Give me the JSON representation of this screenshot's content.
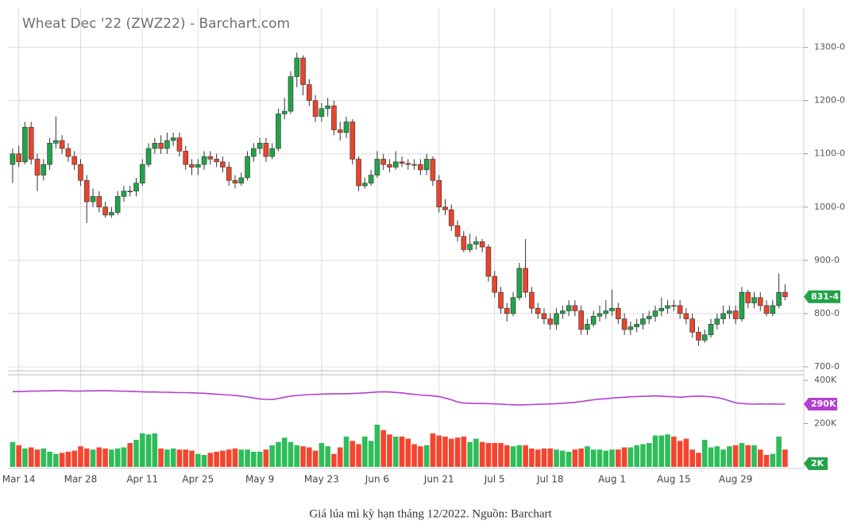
{
  "chart_data": {
    "type": "candlestick",
    "title": "Wheat Dec '22 (ZWZ22) - Barchart.com",
    "caption": "Giá lúa mì kỳ hạn tháng 12/2022. Nguồn: Barchart",
    "grid": true,
    "up_color": "#22a34a",
    "down_color": "#e8452c",
    "categories": [
      null,
      "Mar 14",
      null,
      null,
      null,
      null,
      null,
      null,
      null,
      null,
      null,
      "Mar 28",
      null,
      null,
      null,
      null,
      null,
      null,
      null,
      null,
      null,
      "Apr 11",
      null,
      null,
      null,
      null,
      null,
      null,
      null,
      null,
      "Apr 25",
      null,
      null,
      null,
      null,
      null,
      null,
      null,
      null,
      null,
      "May 9",
      null,
      null,
      null,
      null,
      null,
      null,
      null,
      null,
      null,
      "May 23",
      null,
      null,
      null,
      null,
      null,
      null,
      null,
      null,
      "Jun 6",
      null,
      null,
      null,
      null,
      null,
      null,
      null,
      null,
      null,
      "Jun 21",
      null,
      null,
      null,
      null,
      null,
      null,
      null,
      null,
      "Jul 5",
      null,
      null,
      null,
      null,
      null,
      null,
      null,
      null,
      "Jul 18",
      null,
      null,
      null,
      null,
      null,
      null,
      null,
      null,
      null,
      "Aug 1",
      null,
      null,
      null,
      null,
      null,
      null,
      null,
      null,
      null,
      "Aug 15",
      null,
      null,
      null,
      null,
      null,
      null,
      null,
      null,
      null,
      "Aug 29",
      null,
      null,
      null,
      null,
      null,
      null,
      null,
      null
    ],
    "open": [
      1080,
      1100,
      1085,
      1150,
      1090,
      1060,
      1080,
      1120,
      1125,
      1110,
      1095,
      1080,
      1050,
      1010,
      1020,
      1000,
      985,
      990,
      1020,
      1030,
      1030,
      1045,
      1080,
      1110,
      1120,
      1110,
      1125,
      1130,
      1105,
      1080,
      1075,
      1080,
      1095,
      1090,
      1085,
      1075,
      1050,
      1045,
      1055,
      1095,
      1110,
      1120,
      1095,
      1110,
      1175,
      1180,
      1245,
      1280,
      1230,
      1200,
      1170,
      1185,
      1190,
      1145,
      1140,
      1160,
      1090,
      1040,
      1045,
      1060,
      1090,
      1080,
      1075,
      1085,
      1082,
      1080,
      1080,
      1070,
      1090,
      1050,
      1000,
      995,
      965,
      945,
      920,
      930,
      935,
      925,
      870,
      840,
      810,
      800,
      830,
      885,
      840,
      810,
      800,
      790,
      780,
      800,
      805,
      815,
      805,
      770,
      780,
      795,
      800,
      805,
      810,
      790,
      770,
      775,
      780,
      790,
      795,
      805,
      810,
      815,
      815,
      800,
      790,
      765,
      750,
      760,
      780,
      790,
      800,
      805,
      790,
      840,
      820,
      830,
      815,
      800,
      815,
      840
    ],
    "high": [
      1110,
      1115,
      1160,
      1160,
      1100,
      1090,
      1130,
      1170,
      1135,
      1120,
      1105,
      1090,
      1060,
      1035,
      1030,
      1010,
      1000,
      1030,
      1040,
      1040,
      1055,
      1090,
      1120,
      1130,
      1135,
      1140,
      1140,
      1140,
      1115,
      1090,
      1090,
      1105,
      1105,
      1100,
      1095,
      1085,
      1060,
      1065,
      1105,
      1120,
      1130,
      1130,
      1120,
      1185,
      1205,
      1255,
      1290,
      1285,
      1240,
      1210,
      1195,
      1205,
      1200,
      1160,
      1170,
      1165,
      1095,
      1055,
      1070,
      1105,
      1100,
      1090,
      1105,
      1095,
      1090,
      1090,
      1090,
      1100,
      1095,
      1060,
      1015,
      1005,
      975,
      955,
      950,
      945,
      940,
      930,
      880,
      850,
      820,
      840,
      895,
      940,
      850,
      820,
      810,
      800,
      810,
      815,
      825,
      825,
      815,
      790,
      805,
      815,
      825,
      845,
      820,
      800,
      785,
      790,
      800,
      805,
      815,
      830,
      825,
      825,
      825,
      810,
      800,
      775,
      770,
      790,
      800,
      815,
      815,
      815,
      850,
      845,
      840,
      840,
      825,
      825,
      875,
      855
    ],
    "low": [
      1045,
      1075,
      1080,
      1080,
      1030,
      1050,
      1070,
      1110,
      1100,
      1085,
      1070,
      1040,
      970,
      1000,
      990,
      980,
      980,
      985,
      1010,
      1020,
      1020,
      1040,
      1075,
      1100,
      1100,
      1100,
      1115,
      1095,
      1070,
      1060,
      1060,
      1070,
      1080,
      1075,
      1065,
      1040,
      1035,
      1040,
      1050,
      1085,
      1100,
      1085,
      1090,
      1105,
      1165,
      1175,
      1225,
      1210,
      1190,
      1160,
      1160,
      1170,
      1135,
      1125,
      1130,
      1080,
      1030,
      1035,
      1040,
      1055,
      1070,
      1065,
      1070,
      1075,
      1070,
      1070,
      1060,
      1060,
      1040,
      990,
      985,
      955,
      935,
      915,
      915,
      920,
      915,
      860,
      830,
      800,
      785,
      795,
      825,
      830,
      800,
      790,
      780,
      770,
      770,
      790,
      795,
      795,
      760,
      760,
      775,
      785,
      790,
      795,
      780,
      760,
      760,
      765,
      770,
      780,
      785,
      795,
      800,
      805,
      790,
      780,
      755,
      740,
      745,
      755,
      770,
      780,
      790,
      780,
      785,
      810,
      810,
      805,
      795,
      795,
      810,
      825
    ],
    "close": [
      1100,
      1085,
      1150,
      1090,
      1060,
      1080,
      1120,
      1125,
      1110,
      1095,
      1080,
      1050,
      1010,
      1020,
      1000,
      985,
      990,
      1020,
      1030,
      1030,
      1045,
      1080,
      1110,
      1120,
      1110,
      1125,
      1130,
      1105,
      1080,
      1075,
      1080,
      1095,
      1090,
      1085,
      1075,
      1050,
      1045,
      1055,
      1095,
      1110,
      1120,
      1095,
      1110,
      1175,
      1180,
      1245,
      1280,
      1230,
      1200,
      1170,
      1185,
      1190,
      1145,
      1140,
      1160,
      1090,
      1040,
      1045,
      1060,
      1090,
      1080,
      1075,
      1085,
      1082,
      1080,
      1080,
      1070,
      1090,
      1050,
      1000,
      995,
      965,
      945,
      920,
      930,
      935,
      925,
      870,
      840,
      810,
      800,
      830,
      885,
      840,
      810,
      800,
      790,
      780,
      800,
      805,
      815,
      805,
      770,
      780,
      795,
      800,
      805,
      810,
      790,
      770,
      775,
      780,
      790,
      795,
      805,
      810,
      815,
      815,
      800,
      790,
      765,
      750,
      760,
      780,
      790,
      800,
      805,
      790,
      840,
      820,
      830,
      815,
      800,
      815,
      840,
      831.5
    ],
    "ylim": [
      694,
      1374
    ],
    "yticks": [
      {
        "value": 700,
        "label": "700-0"
      },
      {
        "value": 800,
        "label": "800-0"
      },
      {
        "value": 900,
        "label": "900-0"
      },
      {
        "value": 1000,
        "label": "1000-0"
      },
      {
        "value": 1100,
        "label": "1100-0"
      },
      {
        "value": 1200,
        "label": "1200-0"
      },
      {
        "value": 1300,
        "label": "1300-0"
      }
    ],
    "last_price": {
      "value": 831.5,
      "label": "831-4"
    },
    "volume": {
      "up_color": "#2ebd59",
      "down_color": "#f4452f",
      "values": [
        115,
        100,
        85,
        90,
        80,
        85,
        70,
        60,
        65,
        70,
        75,
        95,
        85,
        80,
        90,
        85,
        80,
        85,
        90,
        110,
        125,
        155,
        150,
        155,
        85,
        80,
        85,
        80,
        80,
        75,
        60,
        55,
        65,
        70,
        75,
        80,
        85,
        80,
        80,
        70,
        70,
        80,
        100,
        115,
        135,
        115,
        100,
        95,
        90,
        75,
        110,
        95,
        60,
        90,
        140,
        120,
        105,
        140,
        120,
        195,
        170,
        150,
        140,
        140,
        130,
        105,
        95,
        100,
        155,
        145,
        140,
        130,
        135,
        140,
        115,
        130,
        115,
        110,
        110,
        110,
        100,
        95,
        100,
        100,
        85,
        80,
        85,
        85,
        80,
        75,
        70,
        80,
        85,
        95,
        80,
        80,
        75,
        80,
        80,
        90,
        90,
        100,
        105,
        110,
        145,
        145,
        150,
        140,
        120,
        130,
        80,
        65,
        125,
        90,
        95,
        80,
        95,
        100,
        110,
        100,
        100,
        80,
        55,
        60,
        140,
        80
      ],
      "last": {
        "value": 2,
        "label": "2K"
      }
    },
    "open_interest": {
      "color": "#b43fd0",
      "values": [
        348,
        348,
        349,
        350,
        350,
        351,
        351,
        352,
        352,
        351,
        350,
        350,
        351,
        351,
        352,
        352,
        351,
        350,
        350,
        349,
        348,
        347,
        346,
        346,
        345,
        345,
        344,
        343,
        343,
        342,
        341,
        340,
        338,
        336,
        334,
        332,
        330,
        327,
        323,
        318,
        314,
        312,
        311,
        316,
        322,
        327,
        330,
        332,
        334,
        335,
        336,
        337,
        338,
        338,
        338,
        339,
        340,
        342,
        344,
        346,
        347,
        346,
        344,
        342,
        338,
        335,
        332,
        330,
        328,
        325,
        318,
        310,
        300,
        295,
        294,
        293,
        293,
        292,
        291,
        290,
        288,
        287,
        286,
        287,
        288,
        289,
        290,
        291,
        292,
        294,
        296,
        298,
        302,
        306,
        310,
        313,
        315,
        318,
        320,
        322,
        324,
        325,
        326,
        327,
        328,
        327,
        325,
        324,
        322,
        324,
        326,
        327,
        326,
        324,
        320,
        314,
        305,
        296,
        293,
        291,
        290,
        291,
        290,
        291,
        290,
        290
      ],
      "last": {
        "value": 290,
        "label": "290K"
      }
    },
    "lower_ylim": [
      0,
      422
    ],
    "lower_yticks": [
      {
        "value": 200,
        "label": "200K"
      },
      {
        "value": 400,
        "label": "400K"
      }
    ]
  }
}
